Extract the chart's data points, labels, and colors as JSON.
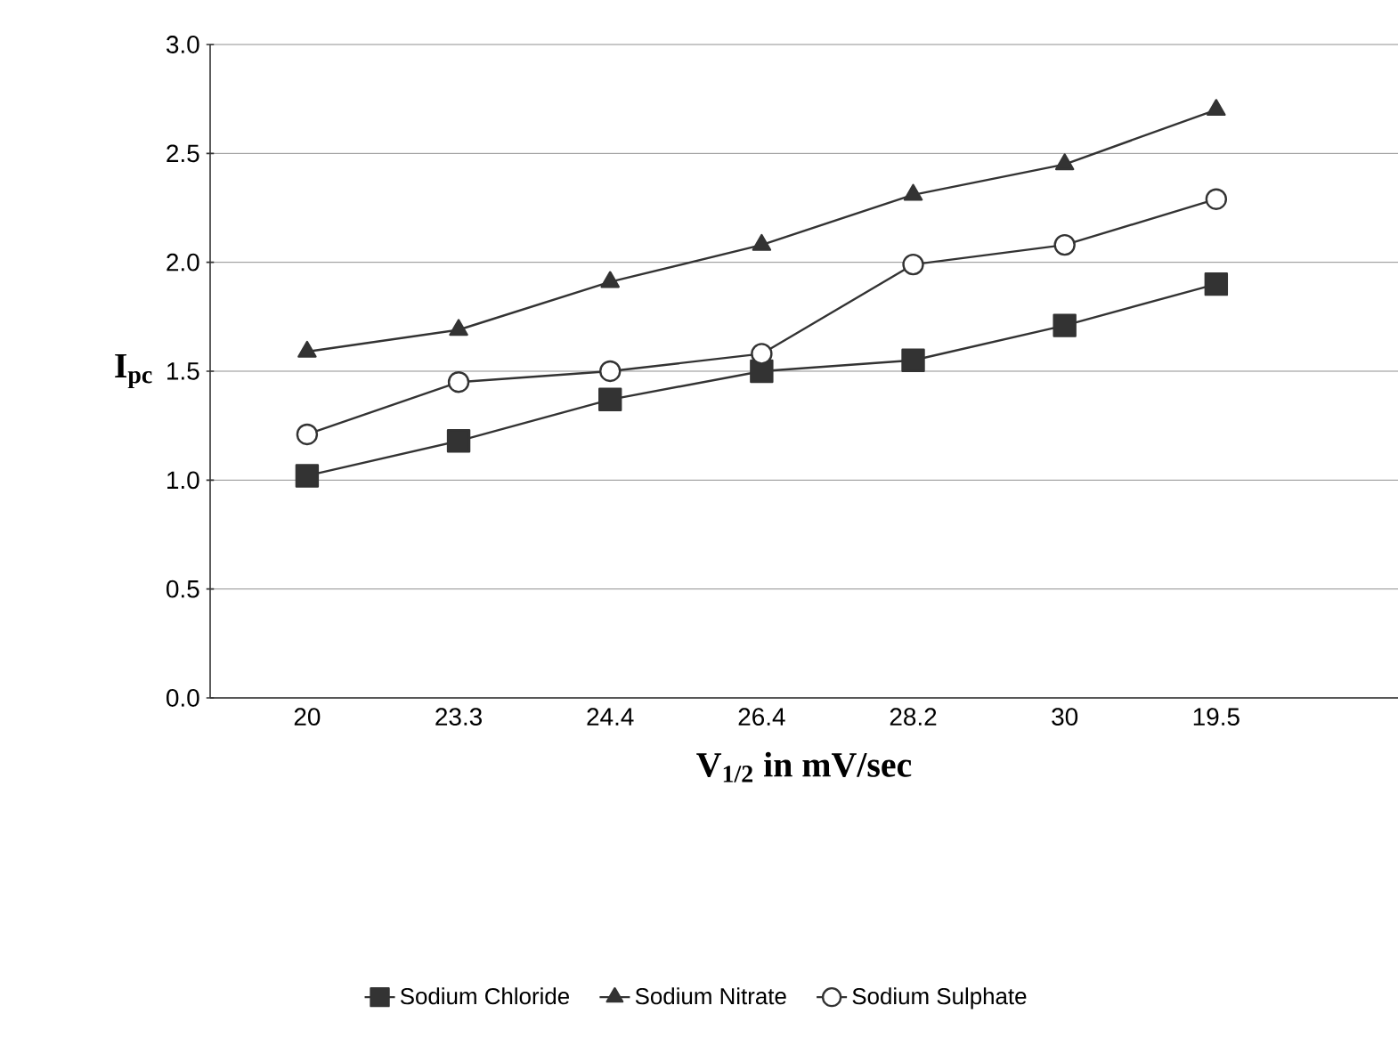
{
  "chart_data": {
    "type": "line",
    "xlabel": "V$_{1/2}$ in mV/sec",
    "ylabel": "I$_{pc}$",
    "categories": [
      "20",
      "23.3",
      "24.4",
      "26.4",
      "28.2",
      "30",
      "19.5"
    ],
    "series": [
      {
        "name": "Sodium Chloride",
        "color": "#333333",
        "marker": "square",
        "values": [
          1.02,
          1.18,
          1.37,
          1.5,
          1.55,
          1.71,
          1.9
        ]
      },
      {
        "name": "Sodium Nitrate",
        "color": "#333333",
        "marker": "triangle",
        "values": [
          1.59,
          1.69,
          1.91,
          2.08,
          2.31,
          2.45,
          2.7
        ]
      },
      {
        "name": "Sodium Sulphate",
        "color": "#333333",
        "marker": "circle",
        "values": [
          1.21,
          1.45,
          1.5,
          1.58,
          1.99,
          2.08,
          2.29
        ]
      }
    ],
    "ylim": [
      0,
      3
    ],
    "yticks": [
      {
        "value": 0,
        "label": "0.0"
      },
      {
        "value": 0.5,
        "label": "0.5"
      },
      {
        "value": 1,
        "label": "1.0"
      },
      {
        "value": 1.5,
        "label": "1.5"
      },
      {
        "value": 2,
        "label": "2.0"
      },
      {
        "value": 2.5,
        "label": "2.5"
      },
      {
        "value": 3,
        "label": "3.0"
      }
    ],
    "grid": "y",
    "legend": "bottom",
    "line_style": "solid"
  }
}
